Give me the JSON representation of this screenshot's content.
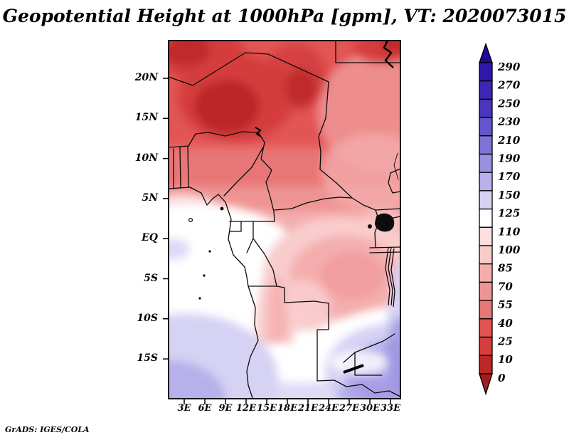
{
  "title": "Geopotential Height at 1000hPa [gpm], VT: 2020073015",
  "footer": "GrADS: IGES/COLA",
  "chart_data": {
    "type": "heatmap",
    "subtype": "filled-contour-geographic-map",
    "title": "Geopotential Height at 1000hPa [gpm], VT: 2020073015",
    "variable": "Geopotential Height",
    "pressure_level": "1000hPa",
    "units": "gpm",
    "valid_time": "2020073015",
    "source_label": "GrADS: IGES/COLA",
    "x_ticks": [
      "3E",
      "6E",
      "9E",
      "12E",
      "15E",
      "18E",
      "21E",
      "24E",
      "27E",
      "30E",
      "33E"
    ],
    "y_ticks": [
      "20N",
      "15N",
      "10N",
      "5N",
      "EQ",
      "5S",
      "10S",
      "15S"
    ],
    "legend_position": "right",
    "grid": false,
    "colorbar": {
      "levels": [
        0,
        10,
        25,
        40,
        55,
        70,
        85,
        100,
        110,
        125,
        150,
        170,
        190,
        210,
        230,
        250,
        270,
        290
      ],
      "colors": [
        "#a51d1d",
        "#bc2727",
        "#d53e3e",
        "#e25454",
        "#e97676",
        "#ef9494",
        "#f4adad",
        "#f9cccc",
        "#fcdfdf",
        "#ffffff",
        "#d6d2f4",
        "#b7b0ea",
        "#9a90e0",
        "#7f72d6",
        "#6556cb",
        "#4935be",
        "#3c27b4",
        "#2f17ac",
        "#23079c"
      ],
      "arrow_below_min": true,
      "arrow_above_max": true
    },
    "field_pattern": "Lowest heights (dark red, 0-40 gpm) across the Sahara/Sahel in the north with cores near 5-13E 16-21N and the NE corner; values increase southward through salmon and pale pink (55-110 gpm) near the equator and Congo basin; white band (110-125) along the Atlantic coast and a SW-NE gap in the south; higher heights (125-190, blue-violet) over the SE corner and the southern Atlantic corner."
  }
}
